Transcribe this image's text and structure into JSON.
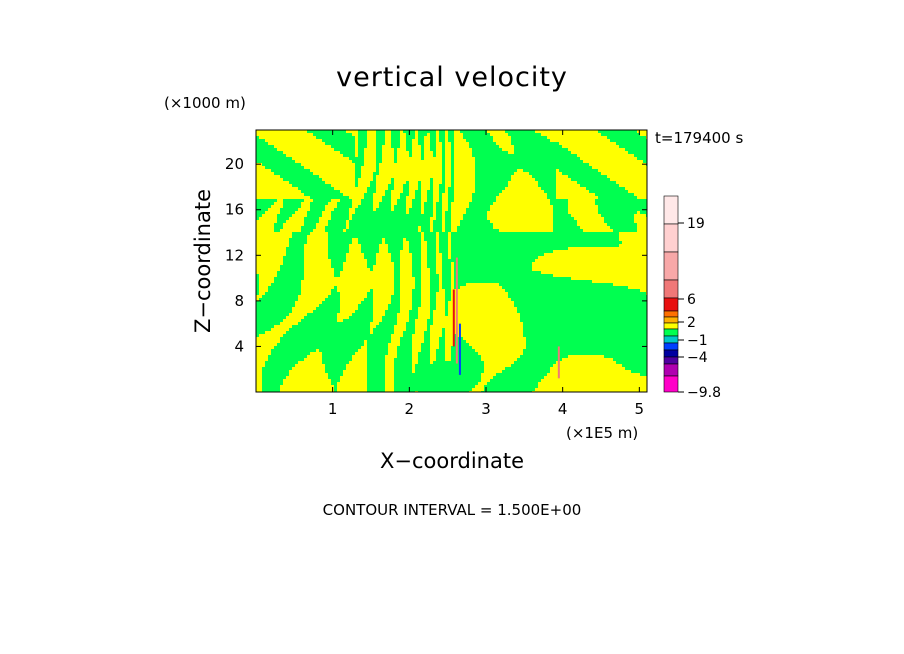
{
  "chart_data": {
    "type": "heatmap",
    "title": "vertical velocity",
    "xlabel": "X−coordinate",
    "ylabel": "Z−coordinate",
    "x_unit": "(×1E5 m)",
    "y_unit": "(×1000 m)",
    "time_label": "t=179400 s",
    "footer": "CONTOUR INTERVAL = 1.500E+00",
    "xlim": [
      0,
      5.1
    ],
    "ylim": [
      0,
      23
    ],
    "x_ticks": [
      1,
      2,
      3,
      4,
      5
    ],
    "x_tick_labels": [
      "1",
      "2",
      "3",
      "4",
      "5"
    ],
    "y_ticks": [
      4,
      8,
      12,
      16,
      20
    ],
    "y_tick_labels": [
      "4",
      "8",
      "12",
      "16",
      "20"
    ],
    "colorbar": {
      "tick_labels": [
        "19",
        "6",
        "2",
        "−1",
        "−4",
        "−9.8"
      ],
      "colors_top_to_bottom": [
        "#ffe8e8",
        "#ffd0d0",
        "#f8a8a8",
        "#f07878",
        "#e81010",
        "#ff7000",
        "#ffb000",
        "#ffff00",
        "#00ff50",
        "#00c8c8",
        "#0040ff",
        "#0000a0",
        "#5000a0",
        "#b000b0",
        "#ff00c8"
      ]
    },
    "dominant_colors": {
      "positive_weak": "#ffff00",
      "negative_weak": "#00ff50"
    }
  }
}
